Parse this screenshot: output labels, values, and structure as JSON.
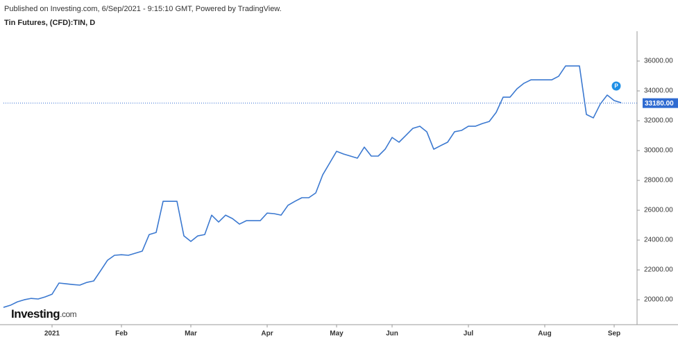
{
  "chart_data": {
    "type": "line",
    "header": "Published on Investing.com, 6/Sep/2021 - 9:15:10 GMT, Powered by TradingView.",
    "title": "Tin Futures, (CFD):TIN, D",
    "logo": {
      "name": "Investing",
      "suffix": ".com"
    },
    "marker": "P",
    "categories": [
      null,
      null,
      null,
      null,
      null,
      null,
      null,
      "2021",
      null,
      null,
      null,
      null,
      null,
      null,
      null,
      null,
      null,
      "Feb",
      null,
      null,
      null,
      null,
      null,
      null,
      null,
      null,
      null,
      "Mar",
      null,
      null,
      null,
      null,
      null,
      null,
      null,
      null,
      null,
      null,
      "Apr",
      null,
      null,
      null,
      null,
      null,
      null,
      null,
      null,
      null,
      "May",
      null,
      null,
      null,
      null,
      null,
      null,
      null,
      "Jun",
      null,
      null,
      null,
      null,
      null,
      null,
      null,
      null,
      null,
      null,
      "Jul",
      null,
      null,
      null,
      null,
      null,
      null,
      null,
      null,
      null,
      null,
      "Aug",
      null,
      null,
      null,
      null,
      null,
      null,
      null,
      null,
      null,
      "Sep",
      null
    ],
    "series": [
      {
        "name": "TIN",
        "color": "#3a78d0",
        "values": [
          19490,
          19630,
          19860,
          20000,
          20090,
          20050,
          20190,
          20370,
          21120,
          21070,
          21020,
          20980,
          21160,
          21260,
          21950,
          22650,
          22980,
          23020,
          22980,
          23120,
          23260,
          24370,
          24510,
          26600,
          26600,
          26600,
          24280,
          23910,
          24280,
          24370,
          25670,
          25210,
          25670,
          25440,
          25070,
          25300,
          25300,
          25300,
          25810,
          25770,
          25670,
          26330,
          26600,
          26840,
          26840,
          27160,
          28370,
          29160,
          29950,
          29770,
          29630,
          29490,
          30230,
          29630,
          29630,
          30090,
          30880,
          30560,
          31020,
          31490,
          31630,
          31260,
          30090,
          30330,
          30560,
          31260,
          31350,
          31630,
          31630,
          31810,
          31950,
          32560,
          33580,
          33580,
          34140,
          34510,
          34740,
          34740,
          34740,
          34740,
          34980,
          35670,
          35670,
          35670,
          32420,
          32190,
          33120,
          33720,
          33350,
          33210
        ]
      }
    ],
    "last_price": {
      "value": 33180,
      "label": "33180.00",
      "color": "#2f6bd1"
    },
    "ylim": [
      18330,
      38000
    ],
    "yticks": [
      {
        "value": 20000,
        "label": "20000.00"
      },
      {
        "value": 22000,
        "label": "22000.00"
      },
      {
        "value": 24000,
        "label": "24000.00"
      },
      {
        "value": 26000,
        "label": "26000.00"
      },
      {
        "value": 28000,
        "label": "28000.00"
      },
      {
        "value": 30000,
        "label": "30000.00"
      },
      {
        "value": 32000,
        "label": "32000.00"
      },
      {
        "value": 34000,
        "label": "34000.00"
      },
      {
        "value": 36000,
        "label": "36000.00"
      }
    ],
    "y_axis_side": "right",
    "grid": false
  }
}
